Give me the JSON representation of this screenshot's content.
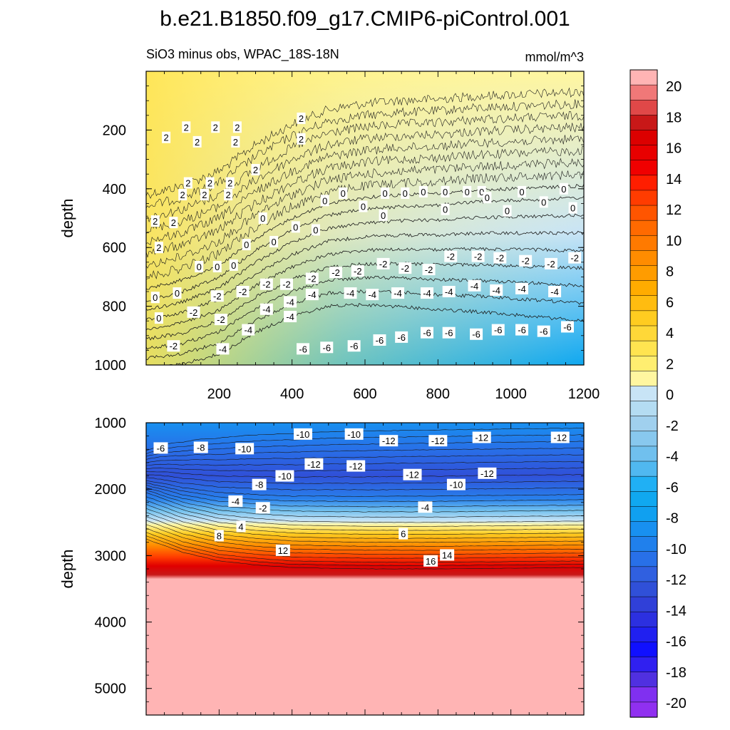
{
  "figure": {
    "title": "b.e21.B1850.f09_g17.CMIP6-piControl.001",
    "subtitle_left": "SiO3 minus obs, WPAC_18S-18N",
    "subtitle_right": "mmol/m^3"
  },
  "chart_data": [
    {
      "type": "contour",
      "panel": "top",
      "ylabel": "depth",
      "xlabel": "",
      "xlim": [
        0,
        1200
      ],
      "ylim": [
        1000,
        0
      ],
      "xticks": [
        200,
        400,
        600,
        800,
        1000,
        1200
      ],
      "yticks": [
        200,
        400,
        600,
        800,
        1000
      ],
      "approx_zero_line_depth": [
        [
          0,
          780
        ],
        [
          100,
          750
        ],
        [
          200,
          700
        ],
        [
          300,
          610
        ],
        [
          400,
          540
        ],
        [
          500,
          490
        ],
        [
          600,
          470
        ],
        [
          700,
          460
        ],
        [
          800,
          455
        ],
        [
          900,
          445
        ],
        [
          1000,
          440
        ],
        [
          1100,
          435
        ],
        [
          1200,
          430
        ]
      ],
      "contour_labels": [
        {
          "x": 55,
          "y": 225,
          "text": "2"
        },
        {
          "x": 110,
          "y": 190,
          "text": "2"
        },
        {
          "x": 190,
          "y": 190,
          "text": "2"
        },
        {
          "x": 250,
          "y": 190,
          "text": "2"
        },
        {
          "x": 140,
          "y": 240,
          "text": "2"
        },
        {
          "x": 245,
          "y": 240,
          "text": "2"
        },
        {
          "x": 425,
          "y": 160,
          "text": "2"
        },
        {
          "x": 425,
          "y": 230,
          "text": "2"
        },
        {
          "x": 300,
          "y": 335,
          "text": "2"
        },
        {
          "x": 115,
          "y": 380,
          "text": "2"
        },
        {
          "x": 175,
          "y": 380,
          "text": "2"
        },
        {
          "x": 230,
          "y": 380,
          "text": "2"
        },
        {
          "x": 100,
          "y": 420,
          "text": "2"
        },
        {
          "x": 160,
          "y": 420,
          "text": "2"
        },
        {
          "x": 225,
          "y": 420,
          "text": "2"
        },
        {
          "x": 25,
          "y": 510,
          "text": "2"
        },
        {
          "x": 75,
          "y": 515,
          "text": "2"
        },
        {
          "x": 35,
          "y": 600,
          "text": "2"
        },
        {
          "x": 540,
          "y": 415,
          "text": "0"
        },
        {
          "x": 655,
          "y": 415,
          "text": "0"
        },
        {
          "x": 710,
          "y": 415,
          "text": "0"
        },
        {
          "x": 760,
          "y": 410,
          "text": "0"
        },
        {
          "x": 820,
          "y": 410,
          "text": "0"
        },
        {
          "x": 880,
          "y": 410,
          "text": "0"
        },
        {
          "x": 920,
          "y": 410,
          "text": "0"
        },
        {
          "x": 1030,
          "y": 410,
          "text": "0"
        },
        {
          "x": 1145,
          "y": 400,
          "text": "0"
        },
        {
          "x": 490,
          "y": 440,
          "text": "0"
        },
        {
          "x": 595,
          "y": 460,
          "text": "0"
        },
        {
          "x": 650,
          "y": 490,
          "text": "0"
        },
        {
          "x": 820,
          "y": 470,
          "text": "0"
        },
        {
          "x": 935,
          "y": 430,
          "text": "0"
        },
        {
          "x": 990,
          "y": 475,
          "text": "0"
        },
        {
          "x": 1090,
          "y": 445,
          "text": "0"
        },
        {
          "x": 1170,
          "y": 465,
          "text": "0"
        },
        {
          "x": 320,
          "y": 500,
          "text": "0"
        },
        {
          "x": 410,
          "y": 530,
          "text": "0"
        },
        {
          "x": 465,
          "y": 540,
          "text": "0"
        },
        {
          "x": 275,
          "y": 590,
          "text": "0"
        },
        {
          "x": 350,
          "y": 580,
          "text": "0"
        },
        {
          "x": 145,
          "y": 665,
          "text": "0"
        },
        {
          "x": 195,
          "y": 665,
          "text": "0"
        },
        {
          "x": 240,
          "y": 660,
          "text": "0"
        },
        {
          "x": 25,
          "y": 770,
          "text": "0"
        },
        {
          "x": 85,
          "y": 755,
          "text": "0"
        },
        {
          "x": 35,
          "y": 840,
          "text": "0"
        },
        {
          "x": 650,
          "y": 655,
          "text": "-2"
        },
        {
          "x": 710,
          "y": 670,
          "text": "-2"
        },
        {
          "x": 775,
          "y": 675,
          "text": "-2"
        },
        {
          "x": 835,
          "y": 630,
          "text": "-2"
        },
        {
          "x": 910,
          "y": 630,
          "text": "-2"
        },
        {
          "x": 970,
          "y": 635,
          "text": "-2"
        },
        {
          "x": 1040,
          "y": 645,
          "text": "-2"
        },
        {
          "x": 1110,
          "y": 655,
          "text": "-2"
        },
        {
          "x": 1175,
          "y": 635,
          "text": "-2"
        },
        {
          "x": 520,
          "y": 685,
          "text": "-2"
        },
        {
          "x": 580,
          "y": 680,
          "text": "-2"
        },
        {
          "x": 455,
          "y": 705,
          "text": "-2"
        },
        {
          "x": 330,
          "y": 725,
          "text": "-2"
        },
        {
          "x": 385,
          "y": 725,
          "text": "-2"
        },
        {
          "x": 265,
          "y": 750,
          "text": "-2"
        },
        {
          "x": 195,
          "y": 765,
          "text": "-2"
        },
        {
          "x": 130,
          "y": 820,
          "text": "-2"
        },
        {
          "x": 205,
          "y": 845,
          "text": "-2"
        },
        {
          "x": 75,
          "y": 935,
          "text": "-2"
        },
        {
          "x": 900,
          "y": 730,
          "text": "-4"
        },
        {
          "x": 960,
          "y": 745,
          "text": "-4"
        },
        {
          "x": 1030,
          "y": 740,
          "text": "-4"
        },
        {
          "x": 1120,
          "y": 750,
          "text": "-4"
        },
        {
          "x": 560,
          "y": 755,
          "text": "-4"
        },
        {
          "x": 620,
          "y": 760,
          "text": "-4"
        },
        {
          "x": 690,
          "y": 755,
          "text": "-4"
        },
        {
          "x": 770,
          "y": 755,
          "text": "-4"
        },
        {
          "x": 830,
          "y": 750,
          "text": "-4"
        },
        {
          "x": 455,
          "y": 760,
          "text": "-4"
        },
        {
          "x": 395,
          "y": 785,
          "text": "-4"
        },
        {
          "x": 330,
          "y": 810,
          "text": "-4"
        },
        {
          "x": 395,
          "y": 835,
          "text": "-4"
        },
        {
          "x": 280,
          "y": 880,
          "text": "-4"
        },
        {
          "x": 210,
          "y": 945,
          "text": "-4"
        },
        {
          "x": 965,
          "y": 880,
          "text": "-6"
        },
        {
          "x": 1030,
          "y": 880,
          "text": "-6"
        },
        {
          "x": 1090,
          "y": 885,
          "text": "-6"
        },
        {
          "x": 1155,
          "y": 870,
          "text": "-6"
        },
        {
          "x": 905,
          "y": 895,
          "text": "-6"
        },
        {
          "x": 770,
          "y": 890,
          "text": "-6"
        },
        {
          "x": 830,
          "y": 890,
          "text": "-6"
        },
        {
          "x": 700,
          "y": 905,
          "text": "-6"
        },
        {
          "x": 640,
          "y": 915,
          "text": "-6"
        },
        {
          "x": 570,
          "y": 935,
          "text": "-6"
        },
        {
          "x": 495,
          "y": 940,
          "text": "-6"
        },
        {
          "x": 430,
          "y": 945,
          "text": "-6"
        }
      ]
    },
    {
      "type": "contour",
      "panel": "bottom",
      "ylabel": "depth",
      "xlabel": "",
      "xlim": [
        0,
        1200
      ],
      "ylim": [
        5400,
        1000
      ],
      "yticks": [
        1000,
        2000,
        3000,
        4000,
        5000
      ],
      "colorbar": {
        "levels": [
          -20,
          -18,
          -16,
          -14,
          -12,
          -10,
          -8,
          -6,
          -4,
          -2,
          0,
          2,
          4,
          6,
          8,
          10,
          12,
          14,
          16,
          18,
          20
        ],
        "tick_labels": [
          "20",
          "18",
          "16",
          "14",
          "12",
          "10",
          "8",
          "6",
          "4",
          "2",
          "0",
          "-2",
          "-4",
          "-6",
          "-8",
          "-10",
          "-12",
          "-14",
          "-16",
          "-18",
          "-20"
        ],
        "colors": [
          "#ffb4b4",
          "#f07878",
          "#e04848",
          "#c81818",
          "#dc0000",
          "#e80000",
          "#f00000",
          "#ff1e00",
          "#ff3c00",
          "#ff5500",
          "#ff6a00",
          "#ff7a00",
          "#ff8c00",
          "#ff9c00",
          "#ffac00",
          "#ffbc10",
          "#ffcc20",
          "#ffd838",
          "#ffe450",
          "#ffee70",
          "#fff6a0",
          "#c8e4f6",
          "#b4dcf2",
          "#a0d0ee",
          "#88c8ee",
          "#70c0ee",
          "#50b8f0",
          "#20b0f4",
          "#10a8f0",
          "#10a0f0",
          "#1890f0",
          "#2080ec",
          "#2870e8",
          "#3060e0",
          "#3050d8",
          "#3040d8",
          "#2c30e0",
          "#2020f0",
          "#1010ff",
          "#3020f0",
          "#5030e0",
          "#8030f0",
          "#9030f0"
        ]
      },
      "approx_zero_line_depth": [
        [
          0,
          2050
        ],
        [
          100,
          2250
        ],
        [
          200,
          2380
        ],
        [
          300,
          2440
        ],
        [
          400,
          2480
        ],
        [
          600,
          2500
        ],
        [
          800,
          2500
        ],
        [
          1000,
          2490
        ],
        [
          1200,
          2480
        ]
      ],
      "contour_labels": [
        {
          "x": 40,
          "y": 1380,
          "text": "-6"
        },
        {
          "x": 150,
          "y": 1370,
          "text": "-8"
        },
        {
          "x": 270,
          "y": 1390,
          "text": "-10"
        },
        {
          "x": 430,
          "y": 1170,
          "text": "-10"
        },
        {
          "x": 570,
          "y": 1170,
          "text": "-10"
        },
        {
          "x": 665,
          "y": 1270,
          "text": "-12"
        },
        {
          "x": 800,
          "y": 1270,
          "text": "-12"
        },
        {
          "x": 920,
          "y": 1220,
          "text": "-12"
        },
        {
          "x": 1135,
          "y": 1220,
          "text": "-12"
        },
        {
          "x": 460,
          "y": 1620,
          "text": "-12"
        },
        {
          "x": 575,
          "y": 1650,
          "text": "-12"
        },
        {
          "x": 730,
          "y": 1780,
          "text": "-12"
        },
        {
          "x": 935,
          "y": 1760,
          "text": "-12"
        },
        {
          "x": 380,
          "y": 1800,
          "text": "-10"
        },
        {
          "x": 850,
          "y": 1930,
          "text": "-10"
        },
        {
          "x": 310,
          "y": 1930,
          "text": "-8"
        },
        {
          "x": 245,
          "y": 2180,
          "text": "-4"
        },
        {
          "x": 320,
          "y": 2280,
          "text": "-2"
        },
        {
          "x": 765,
          "y": 2270,
          "text": "-4"
        },
        {
          "x": 260,
          "y": 2560,
          "text": "4"
        },
        {
          "x": 200,
          "y": 2700,
          "text": "8"
        },
        {
          "x": 705,
          "y": 2670,
          "text": "6"
        },
        {
          "x": 375,
          "y": 2920,
          "text": "12"
        },
        {
          "x": 825,
          "y": 2990,
          "text": "14"
        },
        {
          "x": 780,
          "y": 3080,
          "text": "16"
        }
      ]
    }
  ]
}
